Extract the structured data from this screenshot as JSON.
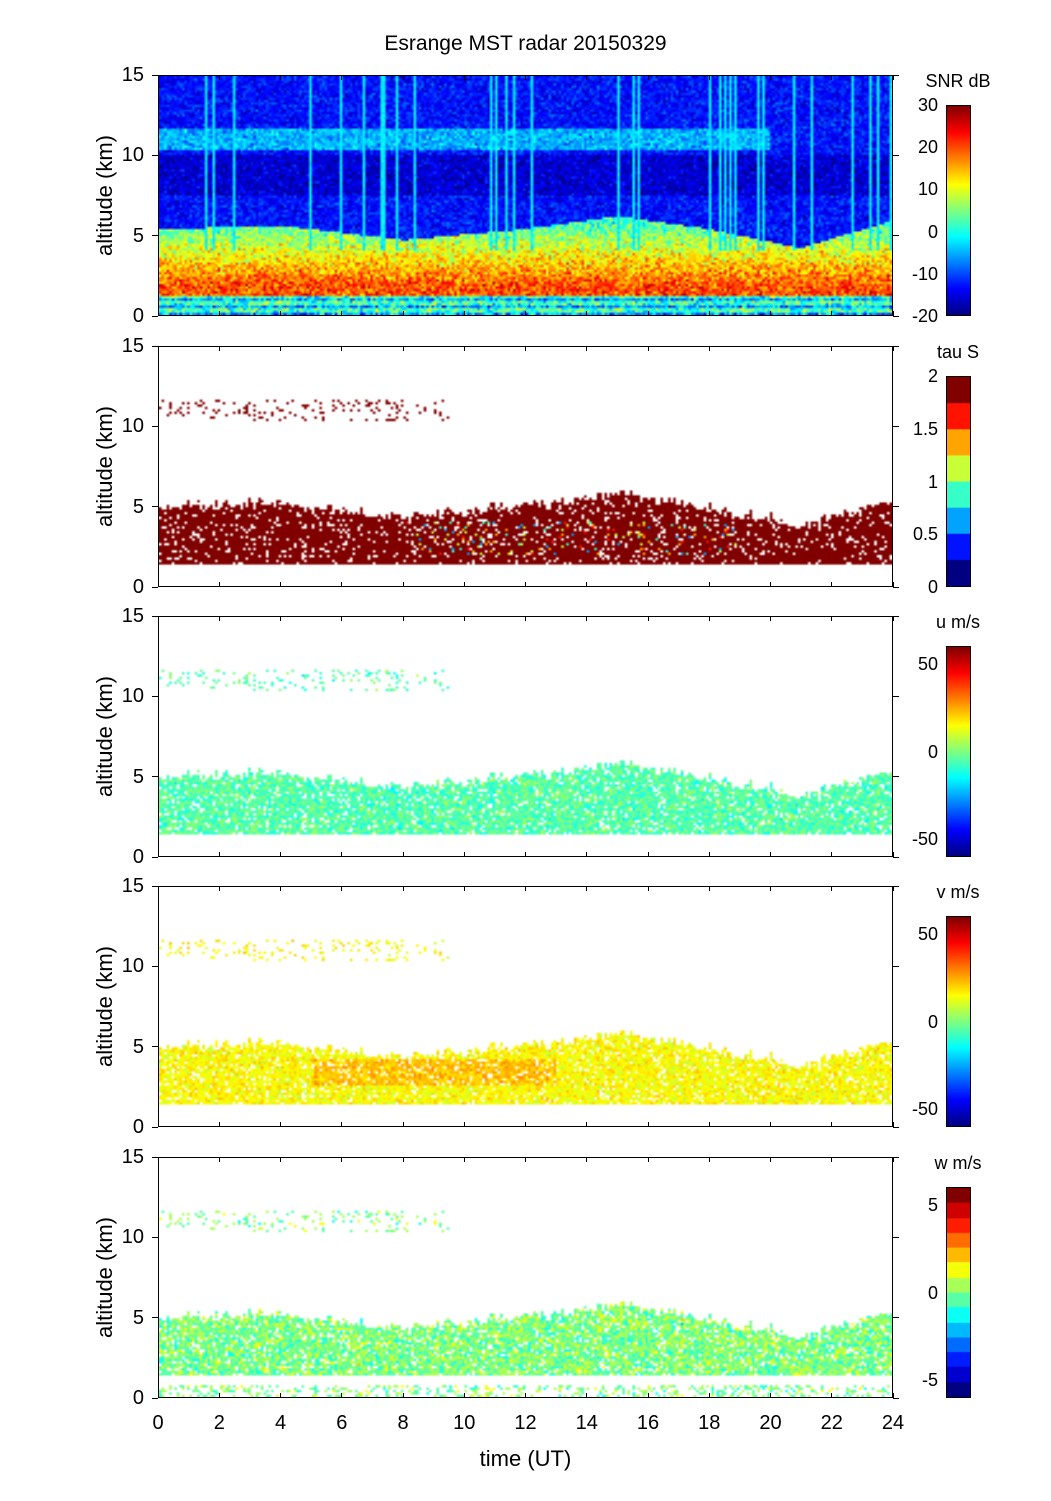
{
  "chart_data": {
    "type": "heatmap",
    "title": "Esrange MST radar 20150329",
    "xlabel": "time (UT)",
    "xlim": [
      0,
      24
    ],
    "xticks": [
      "0",
      "2",
      "4",
      "6",
      "8",
      "10",
      "12",
      "14",
      "16",
      "18",
      "20",
      "22",
      "24"
    ],
    "echo_layer_base_km": 1.3,
    "echo_layer_top_km": [
      [
        0,
        5
      ],
      [
        4,
        5.2
      ],
      [
        8,
        4.3
      ],
      [
        12,
        5
      ],
      [
        15,
        5.8
      ],
      [
        18,
        5
      ],
      [
        21,
        3.8
      ],
      [
        24,
        5.5
      ]
    ],
    "panels": [
      {
        "name": "snr",
        "ylabel": "altitude (km)",
        "ylim": [
          0,
          15
        ],
        "yticks": [
          "0",
          "5",
          "10",
          "15"
        ],
        "colorbar_label": "SNR dB",
        "clim": [
          -20,
          30
        ],
        "colorbar_ticks": [
          "30",
          "20",
          "10",
          "0",
          "-10",
          "-20"
        ],
        "levels": 0,
        "typical_value_in_layer": 20,
        "background_value": -13
      },
      {
        "name": "tau",
        "ylabel": "altitude (km)",
        "ylim": [
          0,
          15
        ],
        "yticks": [
          "0",
          "5",
          "10",
          "15"
        ],
        "colorbar_label": "tau S",
        "clim": [
          0,
          2
        ],
        "colorbar_ticks": [
          "2",
          "1.5",
          "1",
          "0.5",
          "0"
        ],
        "levels": 8,
        "typical_value_in_layer": 2
      },
      {
        "name": "u",
        "ylabel": "altitude (km)",
        "ylim": [
          0,
          15
        ],
        "yticks": [
          "0",
          "5",
          "10",
          "15"
        ],
        "colorbar_label": "u m/s",
        "clim": [
          -60,
          60
        ],
        "colorbar_ticks": [
          "50",
          "0",
          "-50"
        ],
        "levels": 0,
        "typical_value_in_layer": -5
      },
      {
        "name": "v",
        "ylabel": "altitude (km)",
        "ylim": [
          0,
          15
        ],
        "yticks": [
          "0",
          "5",
          "10",
          "15"
        ],
        "colorbar_label": "v m/s",
        "clim": [
          -60,
          60
        ],
        "colorbar_ticks": [
          "50",
          "0",
          "-50"
        ],
        "levels": 0,
        "typical_value_in_layer": 15
      },
      {
        "name": "w",
        "ylabel": "altitude (km)",
        "ylim": [
          0,
          15
        ],
        "yticks": [
          "0",
          "5",
          "10",
          "15"
        ],
        "colorbar_label": "w m/s",
        "clim": [
          -6,
          6
        ],
        "colorbar_ticks": [
          "5",
          "0",
          "-5"
        ],
        "levels": 14,
        "typical_value_in_layer": 0
      }
    ]
  }
}
